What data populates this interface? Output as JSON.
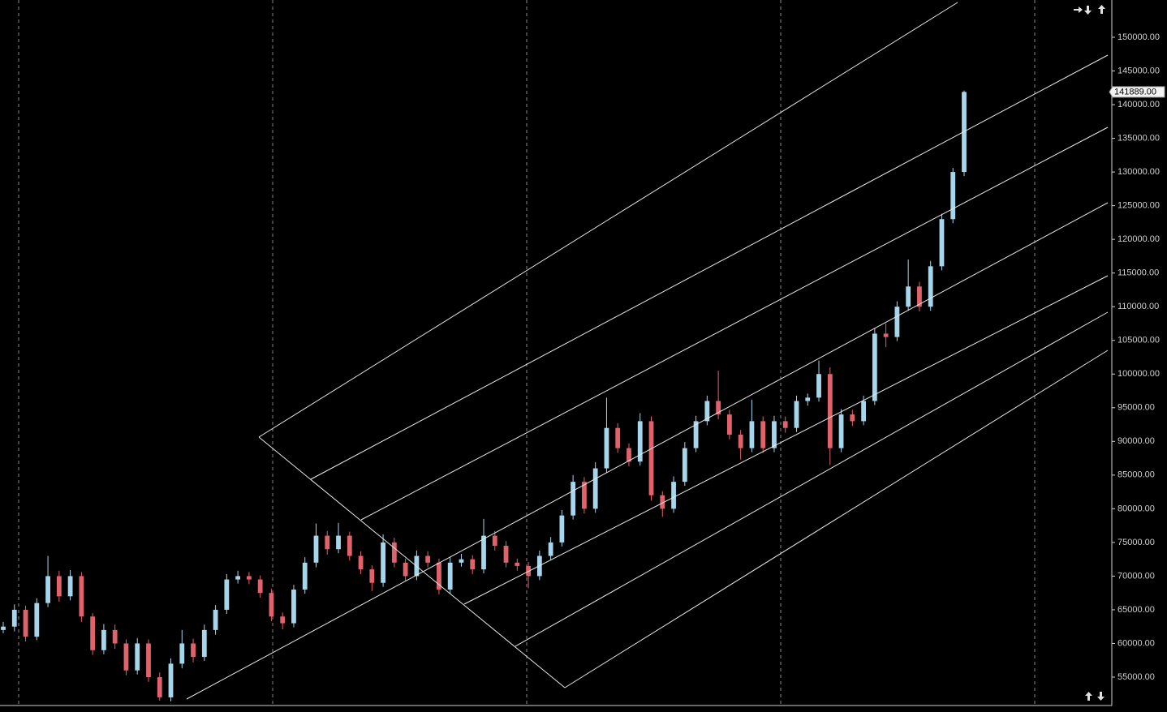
{
  "chart_data": {
    "type": "candlestick",
    "ylim": [
      50786,
      155538
    ],
    "yticks": [
      {
        "value": 55000,
        "label": "55000.00"
      },
      {
        "value": 60000,
        "label": "60000.00"
      },
      {
        "value": 65000,
        "label": "65000.00"
      },
      {
        "value": 70000,
        "label": "70000.00"
      },
      {
        "value": 75000,
        "label": "75000.00"
      },
      {
        "value": 80000,
        "label": "80000.00"
      },
      {
        "value": 85000,
        "label": "85000.00"
      },
      {
        "value": 90000,
        "label": "90000.00"
      },
      {
        "value": 95000,
        "label": "95000.00"
      },
      {
        "value": 100000,
        "label": "100000.00"
      },
      {
        "value": 105000,
        "label": "105000.00"
      },
      {
        "value": 110000,
        "label": "110000.00"
      },
      {
        "value": 115000,
        "label": "115000.00"
      },
      {
        "value": 120000,
        "label": "120000.00"
      },
      {
        "value": 125000,
        "label": "125000.00"
      },
      {
        "value": 130000,
        "label": "130000.00"
      },
      {
        "value": 135000,
        "label": "135000.00"
      },
      {
        "value": 140000,
        "label": "140000.00"
      },
      {
        "value": 145000,
        "label": "145000.00"
      },
      {
        "value": 150000,
        "label": "150000.00"
      }
    ],
    "up_color": "#a6d6ec",
    "down_color": "#e0636b",
    "last_price": {
      "value": 141889,
      "label": "141889.00"
    },
    "candles": [
      {
        "o": 62000,
        "h": 63200,
        "l": 61500,
        "c": 62500
      },
      {
        "o": 62500,
        "h": 65800,
        "l": 61800,
        "c": 65000
      },
      {
        "o": 65000,
        "h": 65600,
        "l": 60300,
        "c": 61000
      },
      {
        "o": 61000,
        "h": 66700,
        "l": 60500,
        "c": 66000
      },
      {
        "o": 66000,
        "h": 73000,
        "l": 65400,
        "c": 70000
      },
      {
        "o": 70000,
        "h": 70800,
        "l": 66200,
        "c": 67000
      },
      {
        "o": 67000,
        "h": 70900,
        "l": 66400,
        "c": 70000
      },
      {
        "o": 70000,
        "h": 70600,
        "l": 63200,
        "c": 64000
      },
      {
        "o": 64000,
        "h": 64500,
        "l": 58300,
        "c": 59000
      },
      {
        "o": 59000,
        "h": 62900,
        "l": 58400,
        "c": 62000
      },
      {
        "o": 62000,
        "h": 62800,
        "l": 59200,
        "c": 60000
      },
      {
        "o": 60000,
        "h": 60600,
        "l": 55300,
        "c": 56000
      },
      {
        "o": 56000,
        "h": 60800,
        "l": 55400,
        "c": 60000
      },
      {
        "o": 60000,
        "h": 60600,
        "l": 54300,
        "c": 55000
      },
      {
        "o": 55000,
        "h": 55700,
        "l": 51500,
        "c": 52000
      },
      {
        "o": 52000,
        "h": 57800,
        "l": 51400,
        "c": 57000
      },
      {
        "o": 57000,
        "h": 62000,
        "l": 56300,
        "c": 60000
      },
      {
        "o": 60000,
        "h": 60700,
        "l": 57200,
        "c": 58000
      },
      {
        "o": 58000,
        "h": 62800,
        "l": 57400,
        "c": 62000
      },
      {
        "o": 62000,
        "h": 65700,
        "l": 61300,
        "c": 65000
      },
      {
        "o": 65000,
        "h": 70300,
        "l": 64400,
        "c": 69500
      },
      {
        "o": 69500,
        "h": 70800,
        "l": 68900,
        "c": 70000
      },
      {
        "o": 70000,
        "h": 70600,
        "l": 68800,
        "c": 69500
      },
      {
        "o": 69500,
        "h": 70100,
        "l": 66800,
        "c": 67500
      },
      {
        "o": 67500,
        "h": 68100,
        "l": 63300,
        "c": 64000
      },
      {
        "o": 64000,
        "h": 64600,
        "l": 62100,
        "c": 63000
      },
      {
        "o": 63000,
        "h": 68700,
        "l": 62400,
        "c": 68000
      },
      {
        "o": 68000,
        "h": 72800,
        "l": 67400,
        "c": 72000
      },
      {
        "o": 72000,
        "h": 77800,
        "l": 71300,
        "c": 76000
      },
      {
        "o": 76000,
        "h": 76700,
        "l": 73200,
        "c": 74000
      },
      {
        "o": 74000,
        "h": 77900,
        "l": 73400,
        "c": 76000
      },
      {
        "o": 76000,
        "h": 76600,
        "l": 72300,
        "c": 73000
      },
      {
        "o": 73000,
        "h": 73700,
        "l": 70300,
        "c": 71000
      },
      {
        "o": 71000,
        "h": 71600,
        "l": 67800,
        "c": 69000
      },
      {
        "o": 69000,
        "h": 76200,
        "l": 68400,
        "c": 75000
      },
      {
        "o": 75000,
        "h": 75700,
        "l": 71300,
        "c": 72000
      },
      {
        "o": 72000,
        "h": 72600,
        "l": 69300,
        "c": 70000
      },
      {
        "o": 70000,
        "h": 73800,
        "l": 69400,
        "c": 73000
      },
      {
        "o": 73000,
        "h": 73700,
        "l": 71300,
        "c": 72000
      },
      {
        "o": 72000,
        "h": 72600,
        "l": 67300,
        "c": 68000
      },
      {
        "o": 68000,
        "h": 72800,
        "l": 67400,
        "c": 72000
      },
      {
        "o": 72000,
        "h": 73300,
        "l": 71400,
        "c": 72500
      },
      {
        "o": 72500,
        "h": 73100,
        "l": 70300,
        "c": 71000
      },
      {
        "o": 71000,
        "h": 78500,
        "l": 70400,
        "c": 76000
      },
      {
        "o": 76000,
        "h": 76700,
        "l": 73800,
        "c": 74500
      },
      {
        "o": 74500,
        "h": 75200,
        "l": 71300,
        "c": 72000
      },
      {
        "o": 72000,
        "h": 72600,
        "l": 70800,
        "c": 71500
      },
      {
        "o": 71500,
        "h": 72100,
        "l": 68200,
        "c": 70000
      },
      {
        "o": 70000,
        "h": 73800,
        "l": 69400,
        "c": 73000
      },
      {
        "o": 73000,
        "h": 75800,
        "l": 72400,
        "c": 75000
      },
      {
        "o": 75000,
        "h": 79800,
        "l": 74400,
        "c": 79000
      },
      {
        "o": 79000,
        "h": 85000,
        "l": 78400,
        "c": 84000
      },
      {
        "o": 84000,
        "h": 84700,
        "l": 79300,
        "c": 80000
      },
      {
        "o": 80000,
        "h": 86900,
        "l": 79400,
        "c": 86000
      },
      {
        "o": 86000,
        "h": 96500,
        "l": 85400,
        "c": 92000
      },
      {
        "o": 92000,
        "h": 92700,
        "l": 88300,
        "c": 89000
      },
      {
        "o": 89000,
        "h": 89700,
        "l": 86300,
        "c": 87000
      },
      {
        "o": 87000,
        "h": 94200,
        "l": 86400,
        "c": 93000
      },
      {
        "o": 93000,
        "h": 93700,
        "l": 81200,
        "c": 82000
      },
      {
        "o": 82000,
        "h": 82600,
        "l": 78800,
        "c": 80000
      },
      {
        "o": 80000,
        "h": 84800,
        "l": 79400,
        "c": 84000
      },
      {
        "o": 84000,
        "h": 89900,
        "l": 83400,
        "c": 89000
      },
      {
        "o": 89000,
        "h": 93800,
        "l": 88400,
        "c": 93000
      },
      {
        "o": 93000,
        "h": 96800,
        "l": 92400,
        "c": 96000
      },
      {
        "o": 96000,
        "h": 100500,
        "l": 93300,
        "c": 94000
      },
      {
        "o": 94000,
        "h": 94700,
        "l": 90300,
        "c": 91000
      },
      {
        "o": 91000,
        "h": 91700,
        "l": 87300,
        "c": 89000
      },
      {
        "o": 89000,
        "h": 96200,
        "l": 88400,
        "c": 93000
      },
      {
        "o": 93000,
        "h": 93700,
        "l": 88300,
        "c": 89000
      },
      {
        "o": 89000,
        "h": 93800,
        "l": 88400,
        "c": 93000
      },
      {
        "o": 93000,
        "h": 93700,
        "l": 91300,
        "c": 92000
      },
      {
        "o": 92000,
        "h": 96800,
        "l": 91400,
        "c": 96000
      },
      {
        "o": 96000,
        "h": 97100,
        "l": 95300,
        "c": 96500
      },
      {
        "o": 96500,
        "h": 102000,
        "l": 95900,
        "c": 100000
      },
      {
        "o": 100000,
        "h": 101000,
        "l": 86500,
        "c": 89000
      },
      {
        "o": 89000,
        "h": 94800,
        "l": 88400,
        "c": 94000
      },
      {
        "o": 94000,
        "h": 94700,
        "l": 92300,
        "c": 93000
      },
      {
        "o": 93000,
        "h": 96800,
        "l": 92400,
        "c": 96000
      },
      {
        "o": 96000,
        "h": 106800,
        "l": 95400,
        "c": 106000
      },
      {
        "o": 106000,
        "h": 107500,
        "l": 104000,
        "c": 105500
      },
      {
        "o": 105500,
        "h": 110800,
        "l": 104900,
        "c": 110000
      },
      {
        "o": 110000,
        "h": 117000,
        "l": 109400,
        "c": 113000
      },
      {
        "o": 113000,
        "h": 113700,
        "l": 109300,
        "c": 110000
      },
      {
        "o": 110000,
        "h": 116800,
        "l": 109400,
        "c": 116000
      },
      {
        "o": 116000,
        "h": 123800,
        "l": 115400,
        "c": 123000
      },
      {
        "o": 123000,
        "h": 130600,
        "l": 122400,
        "c": 130000
      },
      {
        "o": 130000,
        "h": 142100,
        "l": 129400,
        "c": 141889
      }
    ]
  }
}
